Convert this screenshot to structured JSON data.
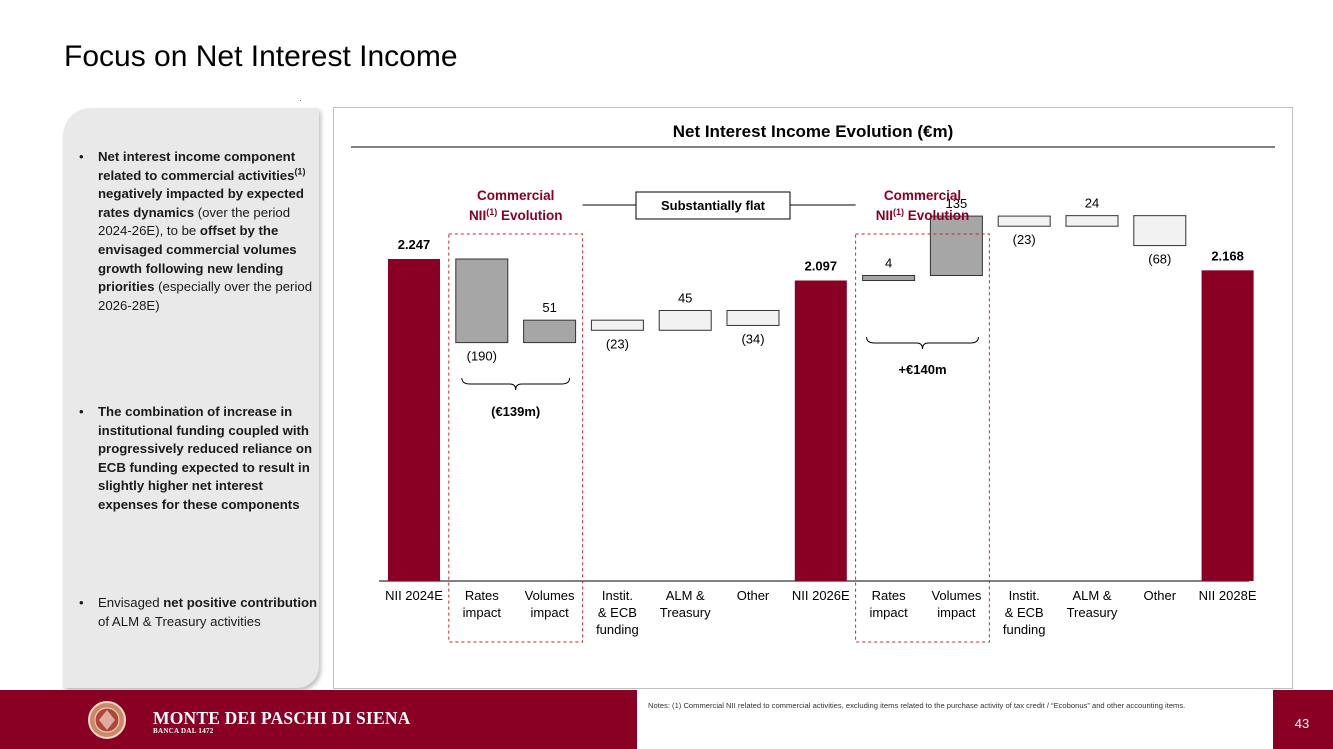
{
  "page": {
    "title": "Focus on Net Interest Income",
    "page_number": "43"
  },
  "bullets": [
    {
      "parts": [
        {
          "text": "Net interest income component related to commercial activities",
          "bold": true
        },
        {
          "text": "(1)",
          "bold": true,
          "sup": true
        },
        {
          "text": " negatively impacted by expected rates dynamics",
          "bold": true
        },
        {
          "text": " (over the period 2024-26E), to be ",
          "bold": false
        },
        {
          "text": "offset by the envisaged commercial volumes growth following new lending priorities",
          "bold": true
        },
        {
          "text": " (especially over the period 2026-28E)",
          "bold": false
        }
      ]
    },
    {
      "parts": [
        {
          "text": "The combination of increase in institutional funding coupled with progressively reduced reliance on ECB funding expected to result in slightly higher net interest expenses for these components",
          "bold": true
        }
      ]
    },
    {
      "parts": [
        {
          "text": "Envisaged ",
          "bold": false
        },
        {
          "text": "net positive contribution",
          "bold": true
        },
        {
          "text": " of ALM & Treasury activities",
          "bold": false
        }
      ]
    }
  ],
  "chart_data": {
    "type": "waterfall",
    "title": "Net Interest Income Evolution (€m)",
    "categories": [
      [
        "NII 2024E"
      ],
      [
        "Rates",
        "impact"
      ],
      [
        "Volumes",
        "impact"
      ],
      [
        "Instit.",
        "& ECB",
        "funding"
      ],
      [
        "ALM &",
        "Treasury"
      ],
      [
        "Other"
      ],
      [
        "NII 2026E"
      ],
      [
        "Rates",
        "impact"
      ],
      [
        "Volumes",
        "impact"
      ],
      [
        "Instit.",
        "& ECB",
        "funding"
      ],
      [
        "ALM &",
        "Treasury"
      ],
      [
        "Other"
      ],
      [
        "NII 2028E"
      ]
    ],
    "kinds": [
      "total",
      "delta",
      "delta",
      "delta",
      "delta",
      "delta",
      "total",
      "delta",
      "delta",
      "delta",
      "delta",
      "delta",
      "total"
    ],
    "values": [
      2247,
      -190,
      51,
      -23,
      45,
      -34,
      2097,
      4,
      135,
      -23,
      24,
      -68,
      2168
    ],
    "labels": [
      "2.247",
      "(190)",
      "51",
      "(23)",
      "45",
      "(34)",
      "2.097",
      "4",
      "135",
      "(23)",
      "24",
      "(68)",
      "2.168"
    ],
    "commercial_groups": [
      {
        "title": "Commercial",
        "subtitle_main": "NII",
        "subtitle_sup": "(1)",
        "subtitle_end": " Evolution",
        "brace_label": "(€139m)"
      },
      {
        "title": "Commercial",
        "subtitle_main": "NII",
        "subtitle_sup": "(1)",
        "subtitle_end": " Evolution",
        "brace_label": "+€140m"
      }
    ],
    "connector_label": "Substantially flat",
    "colors": {
      "total": "#8a0025",
      "delta_commercial": "#a6a6a6",
      "delta_other": "#f2f2f2",
      "accent_text": "#8a0025"
    }
  },
  "footer": {
    "brand": "MONTE DEI PASCHI DI SIENA",
    "brand_sub": "BANCA DAL 1472",
    "notes": "Notes: (1) Commercial NII related to commercial activities, excluding items related to the purchase activity of tax credit / “Ecobonus” and other accounting items."
  }
}
